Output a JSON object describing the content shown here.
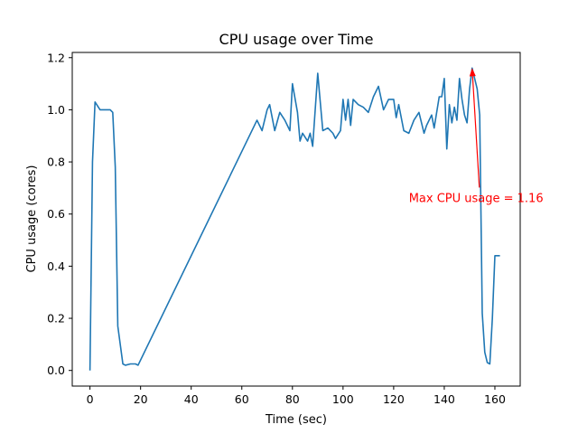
{
  "chart_data": {
    "type": "line",
    "title": "CPU usage over Time",
    "xlabel": "Time (sec)",
    "ylabel": "CPU usage (cores)",
    "xlim": [
      -7,
      170
    ],
    "ylim": [
      -0.06,
      1.22
    ],
    "xticks": [
      "0",
      "20",
      "40",
      "60",
      "80",
      "100",
      "120",
      "140",
      "160"
    ],
    "yticks": [
      "0.0",
      "0.2",
      "0.4",
      "0.6",
      "0.8",
      "1.0",
      "1.2"
    ],
    "grid": false,
    "line_color": "#1f77b4",
    "series": [
      {
        "x": [
          0,
          1,
          2,
          4,
          6,
          8,
          9,
          10,
          11,
          13,
          14,
          16,
          18,
          19,
          66,
          68,
          70,
          71,
          73,
          75,
          77,
          79,
          80,
          82,
          83,
          84,
          86,
          87,
          88,
          90,
          92,
          94,
          96,
          97,
          99,
          100,
          101,
          102,
          103,
          104,
          106,
          108,
          110,
          112,
          114,
          116,
          118,
          120,
          121,
          122,
          124,
          126,
          128,
          130,
          132,
          133,
          135,
          136,
          138,
          139,
          140,
          141,
          142,
          143,
          144,
          145,
          146,
          147,
          148,
          149,
          150,
          151,
          152,
          153,
          154,
          155,
          156,
          157,
          158,
          159,
          160,
          161,
          162
        ],
        "values": [
          0.0,
          0.8,
          1.03,
          1.0,
          1.0,
          1.0,
          0.99,
          0.78,
          0.17,
          0.025,
          0.02,
          0.025,
          0.025,
          0.02,
          0.96,
          0.92,
          1.0,
          1.02,
          0.92,
          0.99,
          0.96,
          0.92,
          1.1,
          0.99,
          0.88,
          0.91,
          0.88,
          0.91,
          0.86,
          1.14,
          0.92,
          0.93,
          0.91,
          0.89,
          0.92,
          1.04,
          0.96,
          1.04,
          0.94,
          1.04,
          1.02,
          1.01,
          0.99,
          1.05,
          1.09,
          1.0,
          1.04,
          1.04,
          0.97,
          1.02,
          0.92,
          0.91,
          0.96,
          0.99,
          0.91,
          0.94,
          0.98,
          0.93,
          1.05,
          1.05,
          1.12,
          0.85,
          1.02,
          0.95,
          1.01,
          0.96,
          1.12,
          1.04,
          0.98,
          0.95,
          1.08,
          1.16,
          1.12,
          1.08,
          0.98,
          0.22,
          0.07,
          0.03,
          0.025,
          0.2,
          0.44,
          0.44,
          0.44
        ]
      }
    ],
    "annotation": {
      "text": "Max CPU usage = 1.16",
      "color": "#ff0000",
      "point": [
        151,
        1.16
      ],
      "text_at": [
        126,
        0.66
      ]
    }
  }
}
